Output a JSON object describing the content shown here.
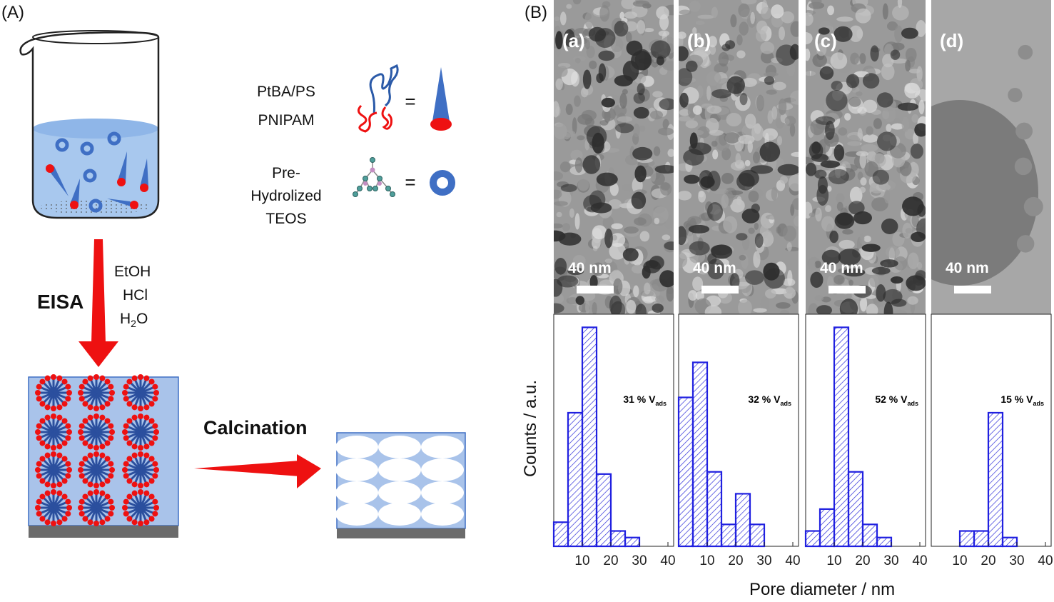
{
  "panel_a": {
    "label": "(A)",
    "legend": {
      "polymer_line1": "PtBA/PS",
      "polymer_line2": "PNIPAM",
      "equals": "=",
      "precursor_line1": "Pre-",
      "precursor_line2": "Hydrolized",
      "precursor_line3": "TEOS"
    },
    "eisa_label": "EISA",
    "reagents": [
      "EtOH",
      "HCl",
      "H"
    ],
    "water_sub": "2",
    "water_tail": "O",
    "calcination_label": "Calcination",
    "colors": {
      "red": "#ee1111",
      "blue": "#3f6fc4",
      "liquid": "#a8c8ee",
      "film": "#a9c3ea"
    }
  },
  "panel_b": {
    "label": "(B)",
    "subpanels": [
      {
        "label": "(a)",
        "scale": "40 nm"
      },
      {
        "label": "(b)",
        "scale": "40 nm"
      },
      {
        "label": "(c)",
        "scale": "40 nm"
      },
      {
        "label": "(d)",
        "scale": "40 nm"
      }
    ],
    "ylabel": "Counts / a.u.",
    "xlabel": "Pore diameter / nm"
  },
  "chart_data": [
    {
      "type": "bar",
      "bin_centers": [
        2.5,
        7.5,
        12.5,
        17.5,
        22.5,
        27.5,
        32.5
      ],
      "values": [
        0.11,
        0.61,
        1.0,
        0.33,
        0.07,
        0.04,
        0.0
      ],
      "annotation": "31 % V",
      "annotation_sub": "ads",
      "xticks": [
        10,
        20,
        30,
        40
      ],
      "xlim": [
        0,
        42
      ],
      "ylim": [
        0,
        1.06
      ]
    },
    {
      "type": "bar",
      "bin_centers": [
        2.5,
        7.5,
        12.5,
        17.5,
        22.5,
        27.5,
        32.5
      ],
      "values": [
        0.68,
        0.84,
        0.34,
        0.1,
        0.24,
        0.1,
        0.0
      ],
      "annotation": "32 % V",
      "annotation_sub": "ads",
      "xticks": [
        10,
        20,
        30,
        40
      ],
      "xlim": [
        0,
        42
      ],
      "ylim": [
        0,
        1.06
      ]
    },
    {
      "type": "bar",
      "bin_centers": [
        2.5,
        7.5,
        12.5,
        17.5,
        22.5,
        27.5,
        32.5
      ],
      "values": [
        0.07,
        0.17,
        1.0,
        0.34,
        0.1,
        0.04,
        0.0
      ],
      "annotation": "52 % V",
      "annotation_sub": "ads",
      "xticks": [
        10,
        20,
        30,
        40
      ],
      "xlim": [
        0,
        42
      ],
      "ylim": [
        0,
        1.06
      ]
    },
    {
      "type": "bar",
      "bin_centers": [
        12.5,
        17.5,
        22.5,
        27.5
      ],
      "values": [
        0.07,
        0.07,
        0.61,
        0.04
      ],
      "annotation": "15 % V",
      "annotation_sub": "ads",
      "xticks": [
        10,
        20,
        30,
        40
      ],
      "xlim": [
        0,
        42
      ],
      "ylim": [
        0,
        1.06
      ]
    }
  ]
}
